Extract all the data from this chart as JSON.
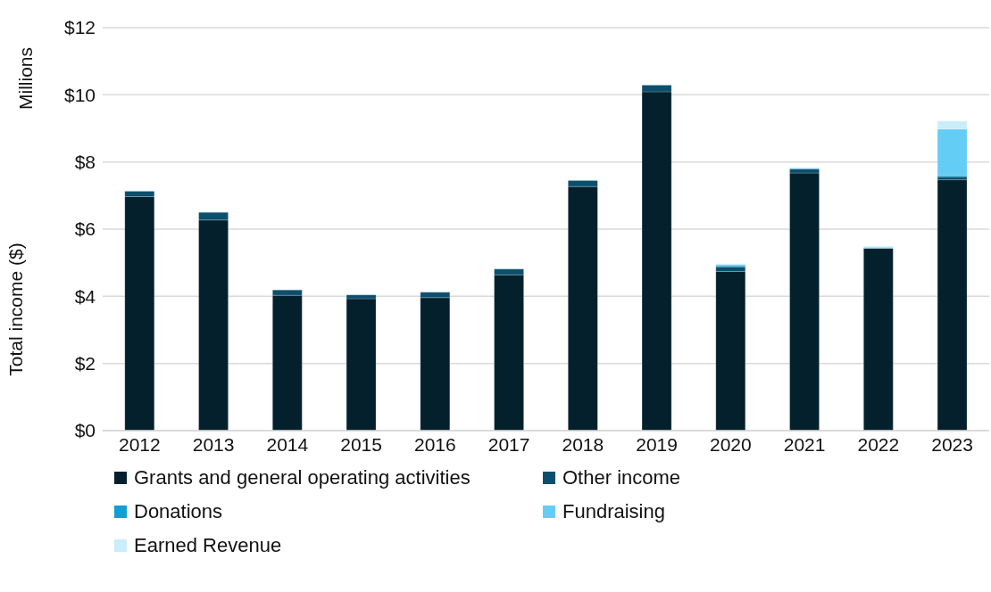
{
  "chart_data": {
    "type": "bar",
    "stacked": true,
    "ylabel": "Total income ($)",
    "annotations": [
      "Millions"
    ],
    "categories": [
      "2012",
      "2013",
      "2014",
      "2015",
      "2016",
      "2017",
      "2018",
      "2019",
      "2020",
      "2021",
      "2022",
      "2023"
    ],
    "series": [
      {
        "name": "Grants and general operating activities",
        "color": "#05202d",
        "values": [
          6.97,
          6.27,
          4.03,
          3.93,
          3.96,
          4.64,
          7.27,
          10.09,
          4.74,
          7.67,
          5.43,
          7.47
        ]
      },
      {
        "name": "Other income",
        "color": "#0b4f6c",
        "values": [
          0.16,
          0.23,
          0.16,
          0.11,
          0.16,
          0.17,
          0.18,
          0.2,
          0.14,
          0.12,
          0,
          0.09
        ]
      },
      {
        "name": "Donations",
        "color": "#119fd4",
        "values": [
          0,
          0,
          0,
          0,
          0,
          0,
          0,
          0,
          0.03,
          0.02,
          0,
          0.04
        ]
      },
      {
        "name": "Fundraising",
        "color": "#63cdf5",
        "values": [
          0,
          0,
          0,
          0,
          0,
          0,
          0,
          0,
          0.03,
          0.01,
          0.03,
          1.38
        ]
      },
      {
        "name": "Earned Revenue",
        "color": "#c9edf9",
        "values": [
          0,
          0,
          0,
          0,
          0,
          0,
          0,
          0,
          0.03,
          0,
          0.03,
          0.24
        ]
      }
    ],
    "ylim": [
      0,
      12
    ],
    "yticks": [
      {
        "value": 0,
        "label": "$0"
      },
      {
        "value": 2,
        "label": "$2"
      },
      {
        "value": 4,
        "label": "$4"
      },
      {
        "value": 6,
        "label": "$6"
      },
      {
        "value": 8,
        "label": "$8"
      },
      {
        "value": 10,
        "label": "$10"
      },
      {
        "value": 12,
        "label": "$12"
      }
    ],
    "grid": "y",
    "legend": "bottom"
  }
}
